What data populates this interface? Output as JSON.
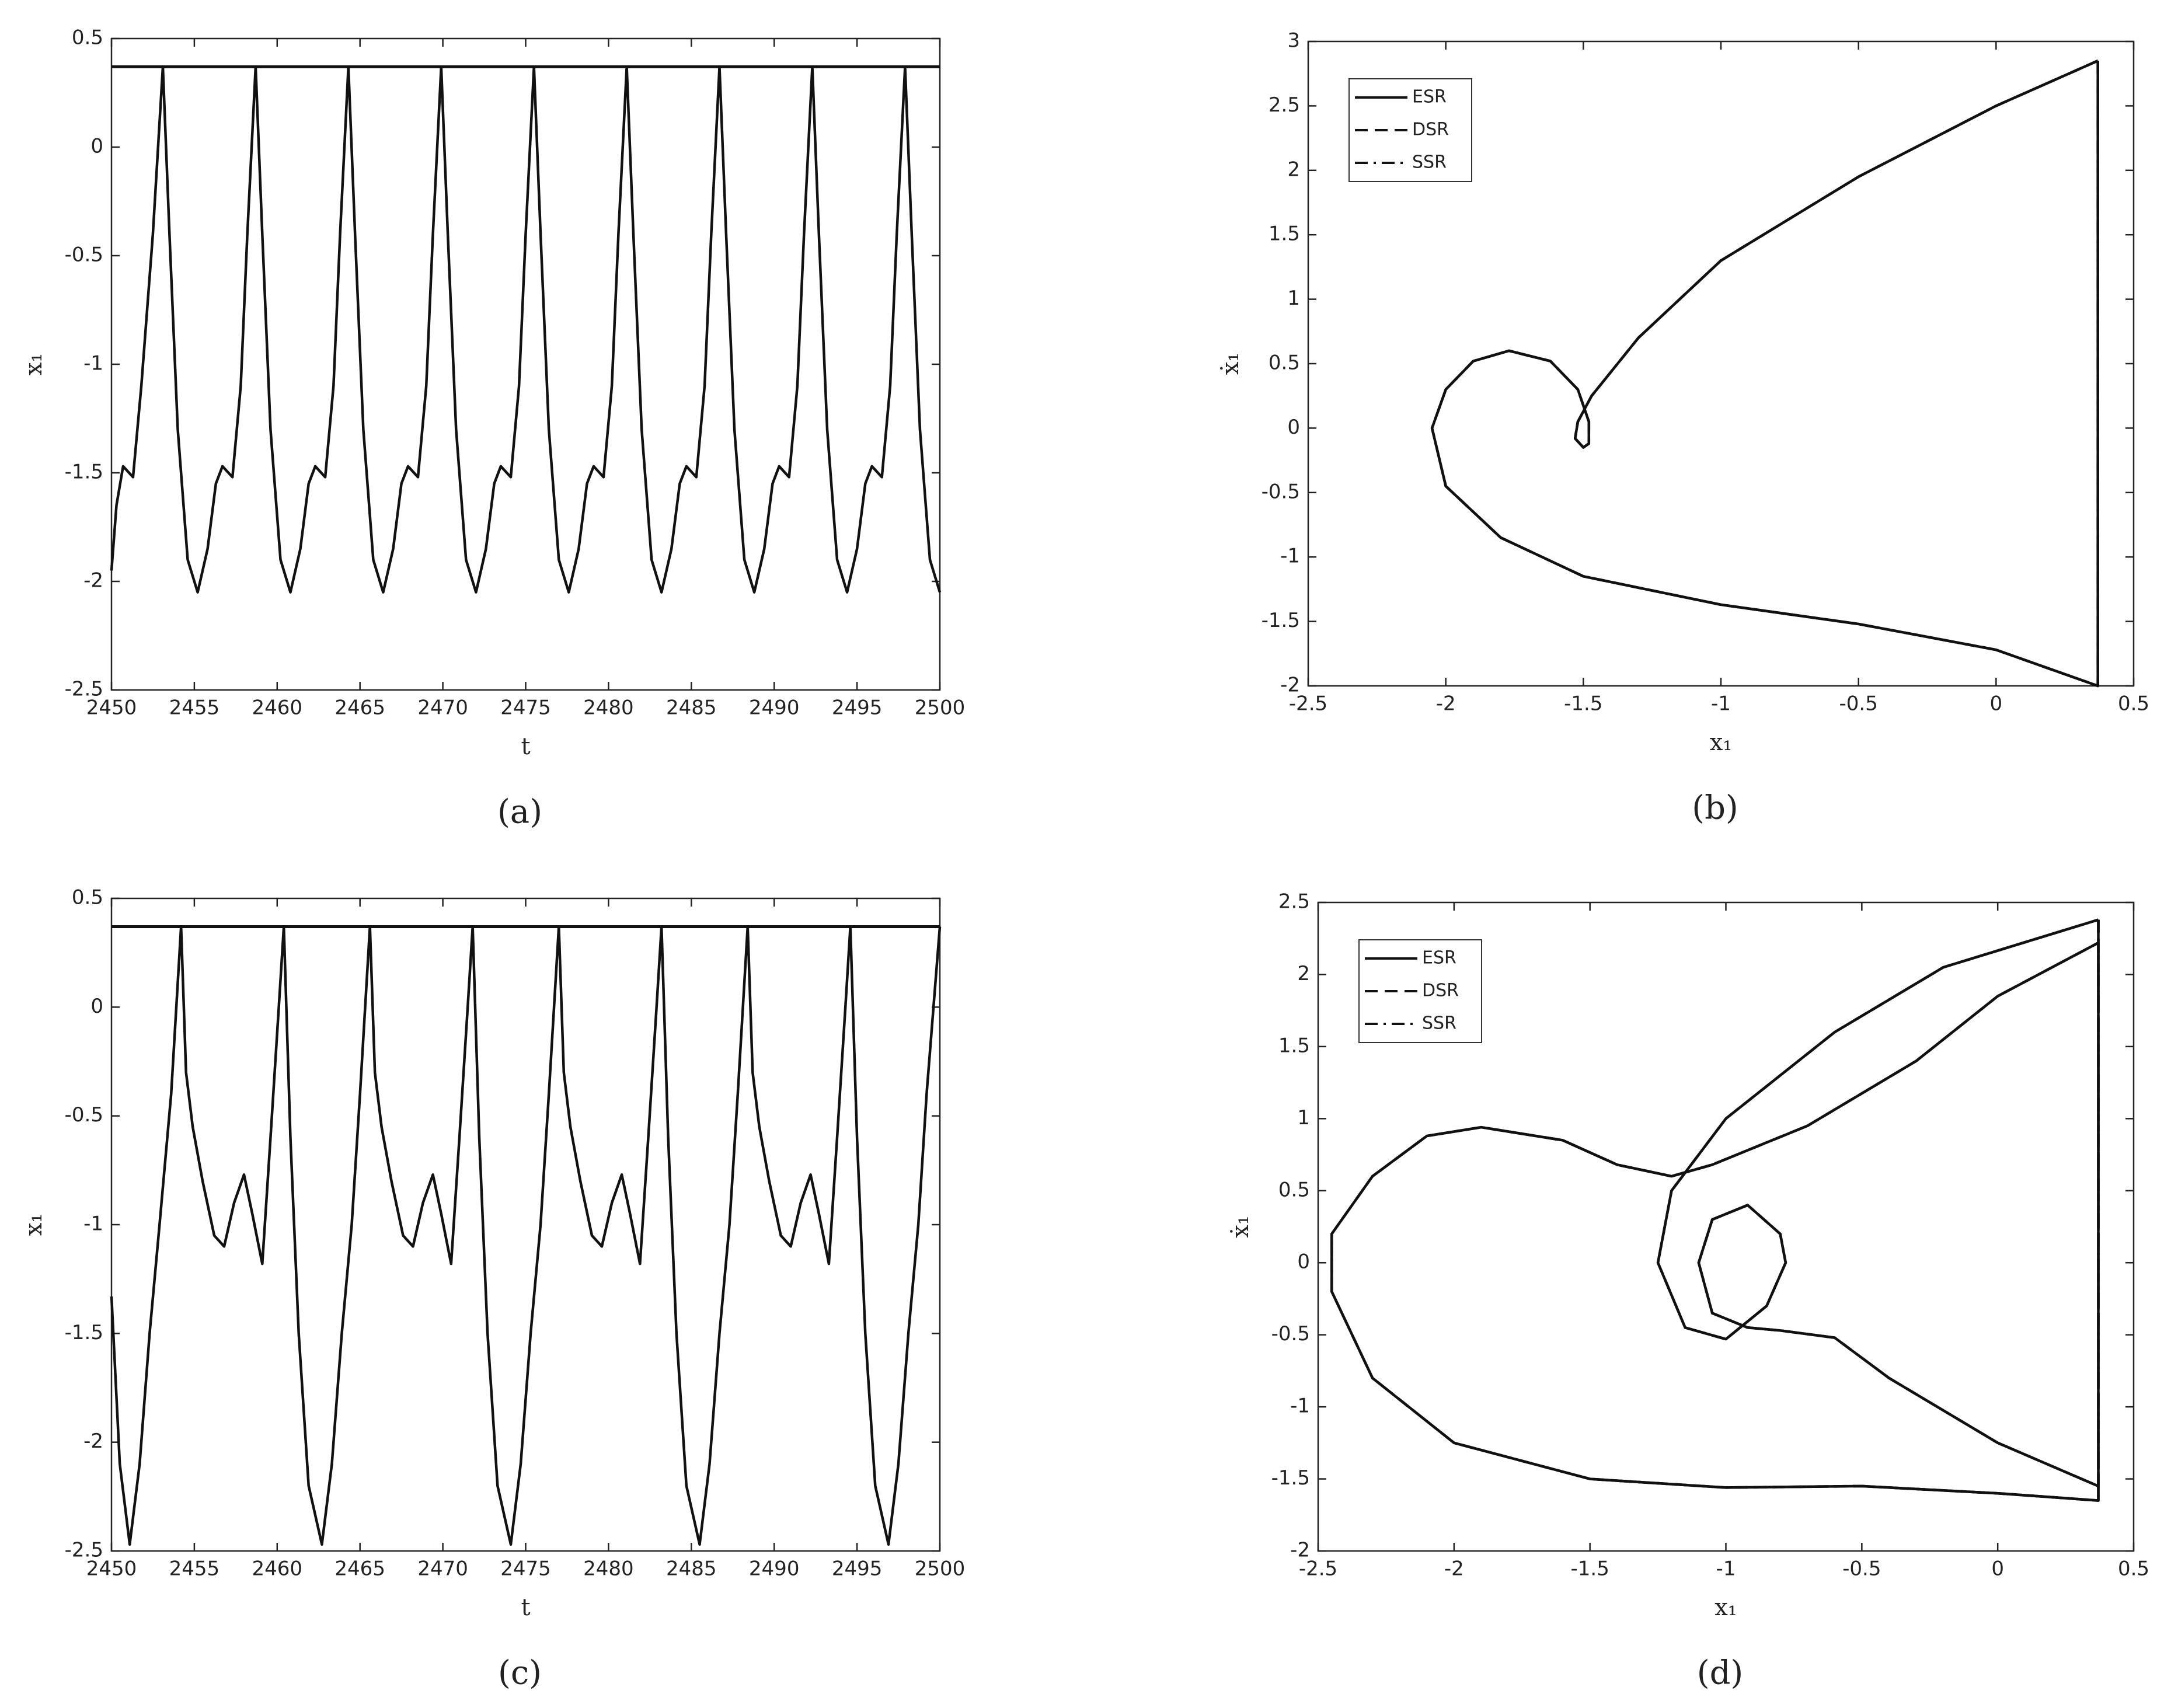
{
  "chart_data": [
    {
      "type": "line",
      "label": "(a)",
      "xlabel": "t",
      "ylabel": "x₁",
      "xlim": [
        2450,
        2500
      ],
      "ylim": [
        -2.5,
        0.5
      ],
      "xticks": [
        2450,
        2455,
        2460,
        2465,
        2470,
        2475,
        2480,
        2485,
        2490,
        2495,
        2500
      ],
      "yticks": [
        -2.5,
        -2,
        -1.5,
        -1,
        -0.5,
        0,
        0.5
      ],
      "hline": 0.37,
      "series": [
        {
          "color": "#111111",
          "x": [
            2450,
            2450.3,
            2450.7,
            2451.3,
            2451.8,
            2452.5,
            2453.1,
            2453.5,
            2454,
            2454.6,
            2455.2,
            2455.8,
            2456.3,
            2456.7,
            2457.3,
            2457.8,
            2458.2,
            2458.7,
            2459.1,
            2459.6,
            2460.2,
            2460.8,
            2461.4,
            2461.9,
            2462.3,
            2462.9,
            2463.4,
            2463.8,
            2464.3,
            2464.7,
            2465.2,
            2465.8,
            2466.4,
            2467,
            2467.5,
            2467.9,
            2468.5,
            2469,
            2469.4,
            2469.9,
            2470.3,
            2470.8,
            2471.4,
            2472,
            2472.6,
            2473.1,
            2473.5,
            2474.1,
            2474.6,
            2475,
            2475.5,
            2475.9,
            2476.4,
            2477,
            2477.6,
            2478.2,
            2478.7,
            2479.1,
            2479.7,
            2480.2,
            2480.6,
            2481.1,
            2481.5,
            2482,
            2482.6,
            2483.2,
            2483.8,
            2484.3,
            2484.7,
            2485.3,
            2485.8,
            2486.2,
            2486.7,
            2487.1,
            2487.6,
            2488.2,
            2488.8,
            2489.4,
            2489.9,
            2490.3,
            2490.9,
            2491.4,
            2491.8,
            2492.3,
            2492.7,
            2493.2,
            2493.8,
            2494.4,
            2495,
            2495.5,
            2495.9,
            2496.5,
            2497,
            2497.4,
            2497.9,
            2498.3,
            2498.8,
            2499.4,
            2500
          ],
          "values": [
            -1.95,
            -1.65,
            -1.47,
            -1.52,
            -1.1,
            -0.4,
            0.37,
            -0.4,
            -1.3,
            -1.9,
            -2.05,
            -1.85,
            -1.55,
            -1.47,
            -1.52,
            -1.1,
            -0.4,
            0.37,
            -0.4,
            -1.3,
            -1.9,
            -2.05,
            -1.85,
            -1.55,
            -1.47,
            -1.52,
            -1.1,
            -0.4,
            0.37,
            -0.4,
            -1.3,
            -1.9,
            -2.05,
            -1.85,
            -1.55,
            -1.47,
            -1.52,
            -1.1,
            -0.4,
            0.37,
            -0.4,
            -1.3,
            -1.9,
            -2.05,
            -1.85,
            -1.55,
            -1.47,
            -1.52,
            -1.1,
            -0.4,
            0.37,
            -0.4,
            -1.3,
            -1.9,
            -2.05,
            -1.85,
            -1.55,
            -1.47,
            -1.52,
            -1.1,
            -0.4,
            0.37,
            -0.4,
            -1.3,
            -1.9,
            -2.05,
            -1.85,
            -1.55,
            -1.47,
            -1.52,
            -1.1,
            -0.4,
            0.37,
            -0.4,
            -1.3,
            -1.9,
            -2.05,
            -1.85,
            -1.55,
            -1.47,
            -1.52,
            -1.1,
            -0.4,
            0.37,
            -0.4,
            -1.3,
            -1.9,
            -2.05,
            -1.85,
            -1.55,
            -1.47,
            -1.52,
            -1.1,
            -0.4,
            0.37,
            -0.4,
            -1.3,
            -1.9,
            -2.05
          ]
        }
      ]
    },
    {
      "type": "line",
      "label": "(b)",
      "xlabel": "x₁",
      "ylabel": "ẋ₁",
      "xlim": [
        -2.5,
        0.5
      ],
      "ylim": [
        -2,
        3
      ],
      "xticks": [
        -2.5,
        -2,
        -1.5,
        -1,
        -0.5,
        0,
        0.5
      ],
      "yticks": [
        -2,
        -1.5,
        -1,
        -0.5,
        0,
        0.5,
        1,
        1.5,
        2,
        2.5,
        3
      ],
      "legend": "upper left",
      "series": [
        {
          "name": "ESR",
          "color": "#111111",
          "dash": "solid",
          "x": [
            0.37,
            0.37,
            0,
            -0.5,
            -1,
            -1.5,
            -1.8,
            -2,
            -2.05,
            -2,
            -1.9,
            -1.77,
            -1.62,
            -1.52,
            -1.48,
            -1.48,
            -1.5,
            -1.53,
            -1.52,
            -1.47,
            -1.3,
            -1,
            -0.5,
            0,
            0.37
          ],
          "values": [
            2.85,
            -2,
            -1.72,
            -1.52,
            -1.37,
            -1.15,
            -0.85,
            -0.45,
            0,
            0.3,
            0.52,
            0.6,
            0.52,
            0.3,
            0.05,
            -0.12,
            -0.15,
            -0.08,
            0.05,
            0.25,
            0.7,
            1.3,
            1.95,
            2.5,
            2.85
          ]
        },
        {
          "name": "DSR",
          "color": "#111111",
          "dash": "dashed",
          "x": [
            0.37,
            0.37,
            0,
            -0.5,
            -1,
            -1.5,
            -1.8,
            -2,
            -2.05,
            -2,
            -1.9,
            -1.77,
            -1.62,
            -1.52,
            -1.48,
            -1.48,
            -1.5,
            -1.53,
            -1.52,
            -1.47,
            -1.3,
            -1,
            -0.5,
            0,
            0.37
          ],
          "values": [
            2.85,
            -2,
            -1.72,
            -1.52,
            -1.37,
            -1.15,
            -0.85,
            -0.45,
            0,
            0.3,
            0.52,
            0.6,
            0.52,
            0.3,
            0.05,
            -0.12,
            -0.15,
            -0.08,
            0.05,
            0.25,
            0.7,
            1.3,
            1.95,
            2.5,
            2.85
          ]
        },
        {
          "name": "SSR",
          "color": "#111111",
          "dash": "dashdot",
          "x": [
            0.37,
            0.37,
            0,
            -0.5,
            -1,
            -1.5,
            -1.8,
            -2,
            -2.05,
            -2,
            -1.9,
            -1.77,
            -1.62,
            -1.52,
            -1.48,
            -1.48,
            -1.5,
            -1.53,
            -1.52,
            -1.47,
            -1.3,
            -1,
            -0.5,
            0,
            0.37
          ],
          "values": [
            2.85,
            -2,
            -1.72,
            -1.52,
            -1.37,
            -1.15,
            -0.85,
            -0.45,
            0,
            0.3,
            0.52,
            0.6,
            0.52,
            0.3,
            0.05,
            -0.12,
            -0.15,
            -0.08,
            0.05,
            0.25,
            0.7,
            1.3,
            1.95,
            2.5,
            2.85
          ]
        }
      ]
    },
    {
      "type": "line",
      "label": "(c)",
      "xlabel": "t",
      "ylabel": "x₁",
      "xlim": [
        2450,
        2500
      ],
      "ylim": [
        -2.5,
        0.5
      ],
      "xticks": [
        2450,
        2455,
        2460,
        2465,
        2470,
        2475,
        2480,
        2485,
        2490,
        2495,
        2500
      ],
      "yticks": [
        -2.5,
        -2,
        -1.5,
        -1,
        -0.5,
        0,
        0.5
      ],
      "hline": 0.37,
      "series": [
        {
          "color": "#111111",
          "x": [
            2450,
            2450.5,
            2451.1,
            2451.7,
            2452.3,
            2452.9,
            2453.6,
            2454.2,
            2454.5,
            2454.9,
            2455.5,
            2456.2,
            2456.8,
            2457.4,
            2458,
            2458.5,
            2459.1,
            2459.6,
            2460.1,
            2460.4,
            2460.8,
            2461.3,
            2461.9,
            2462.7,
            2463.3,
            2463.9,
            2464.5,
            2465,
            2465.6,
            2465.9,
            2466.3,
            2466.9,
            2467.6,
            2468.2,
            2468.8,
            2469.4,
            2469.9,
            2470.5,
            2471,
            2471.5,
            2471.8,
            2472.2,
            2472.7,
            2473.3,
            2474.1,
            2474.7,
            2475.3,
            2475.9,
            2476.4,
            2477,
            2477.3,
            2477.7,
            2478.3,
            2479,
            2479.6,
            2480.2,
            2480.8,
            2481.3,
            2481.9,
            2482.4,
            2482.9,
            2483.2,
            2483.6,
            2484.1,
            2484.7,
            2485.5,
            2486.1,
            2486.7,
            2487.3,
            2487.8,
            2488.4,
            2488.7,
            2489.1,
            2489.7,
            2490.4,
            2491,
            2491.6,
            2492.2,
            2492.7,
            2493.3,
            2493.8,
            2494.3,
            2494.6,
            2495,
            2495.5,
            2496.1,
            2496.9,
            2497.5,
            2498.1,
            2498.7,
            2499.2,
            2500
          ],
          "values": [
            -1.33,
            -2.1,
            -2.47,
            -2.1,
            -1.5,
            -1,
            -0.4,
            0.37,
            -0.3,
            -0.55,
            -0.8,
            -1.05,
            -1.1,
            -0.9,
            -0.77,
            -0.95,
            -1.18,
            -0.6,
            0,
            0.37,
            -0.6,
            -1.5,
            -2.2,
            -2.47,
            -2.1,
            -1.5,
            -1,
            -0.4,
            0.37,
            -0.3,
            -0.55,
            -0.8,
            -1.05,
            -1.1,
            -0.9,
            -0.77,
            -0.95,
            -1.18,
            -0.6,
            0,
            0.37,
            -0.6,
            -1.5,
            -2.2,
            -2.47,
            -2.1,
            -1.5,
            -1,
            -0.4,
            0.37,
            -0.3,
            -0.55,
            -0.8,
            -1.05,
            -1.1,
            -0.9,
            -0.77,
            -0.95,
            -1.18,
            -0.6,
            0,
            0.37,
            -0.6,
            -1.5,
            -2.2,
            -2.47,
            -2.1,
            -1.5,
            -1,
            -0.4,
            0.37,
            -0.3,
            -0.55,
            -0.8,
            -1.05,
            -1.1,
            -0.9,
            -0.77,
            -0.95,
            -1.18,
            -0.6,
            0,
            0.37,
            -0.6,
            -1.5,
            -2.2,
            -2.47,
            -2.1,
            -1.5,
            -1,
            -0.4,
            0.37
          ]
        }
      ]
    },
    {
      "type": "line",
      "label": "(d)",
      "xlabel": "x₁",
      "ylabel": "ẋ₁",
      "xlim": [
        -2.5,
        0.5
      ],
      "ylim": [
        -2,
        2.5
      ],
      "xticks": [
        -2.5,
        -2,
        -1.5,
        -1,
        -0.5,
        0,
        0.5
      ],
      "yticks": [
        -2,
        -1.5,
        -1,
        -0.5,
        0,
        0.5,
        1,
        1.5,
        2,
        2.5
      ],
      "legend": "upper left",
      "series": [
        {
          "name": "ESR",
          "color": "#111111",
          "dash": "solid",
          "x": [
            0.37,
            0.37,
            0,
            -0.5,
            -1,
            -1.5,
            -2,
            -2.3,
            -2.45,
            -2.45,
            -2.3,
            -2.1,
            -1.9,
            -1.6,
            -1.4,
            -1.2,
            -1.05,
            -0.7,
            -0.3,
            0,
            0.37,
            0.37,
            0,
            -0.4,
            -0.6,
            -0.8,
            -0.92,
            -1.05,
            -1.1,
            -1.05,
            -0.92,
            -0.8,
            -0.78,
            -0.85,
            -1,
            -1.15,
            -1.25,
            -1.2,
            -1,
            -0.6,
            -0.2,
            0.37
          ],
          "values": [
            2.38,
            -1.65,
            -1.6,
            -1.55,
            -1.56,
            -1.5,
            -1.25,
            -0.8,
            -0.2,
            0.2,
            0.6,
            0.88,
            0.94,
            0.85,
            0.68,
            0.6,
            0.68,
            0.95,
            1.4,
            1.85,
            2.22,
            -1.55,
            -1.25,
            -0.8,
            -0.52,
            -0.47,
            -0.45,
            -0.35,
            0,
            0.3,
            0.4,
            0.2,
            0,
            -0.3,
            -0.53,
            -0.45,
            0,
            0.5,
            1,
            1.6,
            2.05,
            2.38
          ]
        },
        {
          "name": "DSR",
          "color": "#111111",
          "dash": "dashed",
          "x": [
            0.37,
            0.37,
            0,
            -0.5,
            -1,
            -1.5,
            -2,
            -2.3,
            -2.45,
            -2.45,
            -2.3,
            -2.1,
            -1.9,
            -1.6,
            -1.4,
            -1.2,
            -1.05,
            -0.7,
            -0.3,
            0,
            0.37,
            0.37,
            0,
            -0.4,
            -0.6,
            -0.8,
            -0.92,
            -1.05,
            -1.1,
            -1.05,
            -0.92,
            -0.8,
            -0.78,
            -0.85,
            -1,
            -1.15,
            -1.25,
            -1.2,
            -1,
            -0.6,
            -0.2,
            0.37
          ],
          "values": [
            2.38,
            -1.65,
            -1.6,
            -1.55,
            -1.56,
            -1.5,
            -1.25,
            -0.8,
            -0.2,
            0.2,
            0.6,
            0.88,
            0.94,
            0.85,
            0.68,
            0.6,
            0.68,
            0.95,
            1.4,
            1.85,
            2.22,
            -1.55,
            -1.25,
            -0.8,
            -0.52,
            -0.47,
            -0.45,
            -0.35,
            0,
            0.3,
            0.4,
            0.2,
            0,
            -0.3,
            -0.53,
            -0.45,
            0,
            0.5,
            1,
            1.6,
            2.05,
            2.38
          ]
        },
        {
          "name": "SSR",
          "color": "#111111",
          "dash": "dashdot",
          "x": [
            0.37,
            0.37,
            0,
            -0.5,
            -1,
            -1.5,
            -2,
            -2.3,
            -2.45,
            -2.45,
            -2.3,
            -2.1,
            -1.9,
            -1.6,
            -1.4,
            -1.2,
            -1.05,
            -0.7,
            -0.3,
            0,
            0.37,
            0.37,
            0,
            -0.4,
            -0.6,
            -0.8,
            -0.92,
            -1.05,
            -1.1,
            -1.05,
            -0.92,
            -0.8,
            -0.78,
            -0.85,
            -1,
            -1.15,
            -1.25,
            -1.2,
            -1,
            -0.6,
            -0.2,
            0.37
          ],
          "values": [
            2.38,
            -1.65,
            -1.6,
            -1.55,
            -1.56,
            -1.5,
            -1.25,
            -0.8,
            -0.2,
            0.2,
            0.6,
            0.88,
            0.94,
            0.85,
            0.68,
            0.6,
            0.68,
            0.95,
            1.4,
            1.85,
            2.22,
            -1.55,
            -1.25,
            -0.8,
            -0.52,
            -0.47,
            -0.45,
            -0.35,
            0,
            0.3,
            0.4,
            0.2,
            0,
            -0.3,
            -0.53,
            -0.45,
            0,
            0.5,
            1,
            1.6,
            2.05,
            2.38
          ]
        }
      ]
    }
  ]
}
